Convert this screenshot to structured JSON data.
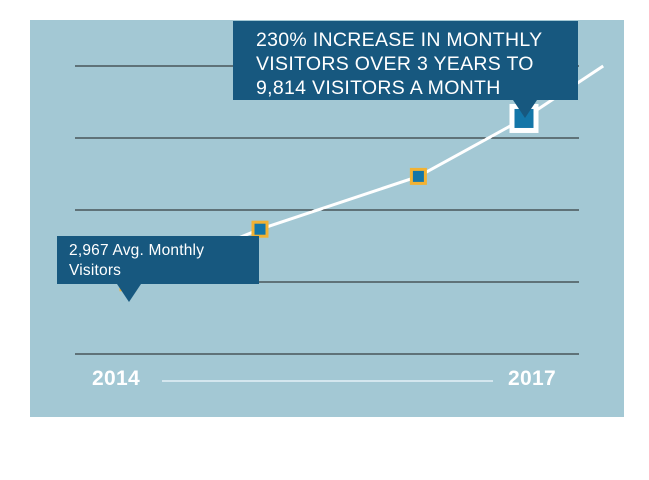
{
  "chart_data": {
    "type": "line",
    "colors": {
      "background": "#a3c8d4",
      "line": "#ffffff",
      "marker_fill": "#1476a8",
      "marker_border": "#f2b233",
      "callout": "#17587f",
      "gridline": "#1b1b1b"
    },
    "x_labels": [
      "2014",
      "2017"
    ],
    "ylim": [
      0,
      12000
    ],
    "grid": true,
    "series": [
      {
        "points": [
          {
            "x": 2013.5,
            "y": 3200
          },
          {
            "x": 2014.0,
            "y": 2967
          },
          {
            "x": 2015.0,
            "y": 5200
          },
          {
            "x": 2016.2,
            "y": 7400
          },
          {
            "x": 2017.0,
            "y": 9814
          },
          {
            "x": 2017.6,
            "y": 12000
          }
        ],
        "markers": [
          {
            "x": 2014.0,
            "y": 2967
          },
          {
            "x": 2015.0,
            "y": 5200
          },
          {
            "x": 2016.2,
            "y": 7400
          },
          {
            "x": 2017.0,
            "y": 9814,
            "highlight": true
          }
        ]
      }
    ],
    "annotations": [
      {
        "text_lines": [
          "230% INCREASE IN MONTHLY",
          "VISITORS OVER 3 YEARS TO",
          "9,814 VISITORS A MONTH"
        ]
      },
      {
        "text_lines": [
          "2,967 Avg. Monthly",
          "Visitors"
        ]
      }
    ]
  }
}
